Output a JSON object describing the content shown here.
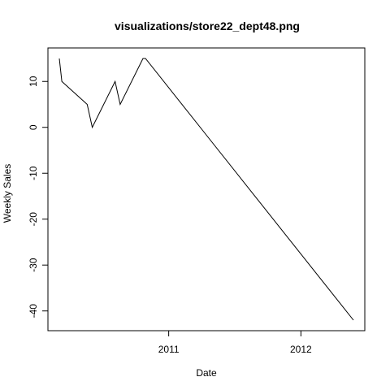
{
  "chart_data": {
    "type": "line",
    "title": "visualizations/store22_dept48.png",
    "xlabel": "Date",
    "ylabel": "Weekly Sales",
    "x_tick_labels": [
      "2011",
      "2012"
    ],
    "y_tick_labels": [
      "-40",
      "-30",
      "-20",
      "-10",
      "0",
      "10"
    ],
    "y_ticks": [
      -40,
      -30,
      -20,
      -10,
      0,
      10
    ],
    "ylim": [
      -44,
      18
    ],
    "grid": false,
    "legend": "none",
    "line_color": "#000000",
    "series": [
      {
        "points": [
          {
            "x": "2010-03-05",
            "y": 15
          },
          {
            "x": "2010-03-12",
            "y": 10
          },
          {
            "x": "2010-05-21",
            "y": 5
          },
          {
            "x": "2010-06-04",
            "y": 0
          },
          {
            "x": "2010-08-06",
            "y": 10
          },
          {
            "x": "2010-08-20",
            "y": 5
          },
          {
            "x": "2010-10-22",
            "y": 15
          },
          {
            "x": "2010-10-29",
            "y": 15
          },
          {
            "x": "2012-05-25",
            "y": -42
          }
        ]
      }
    ]
  }
}
